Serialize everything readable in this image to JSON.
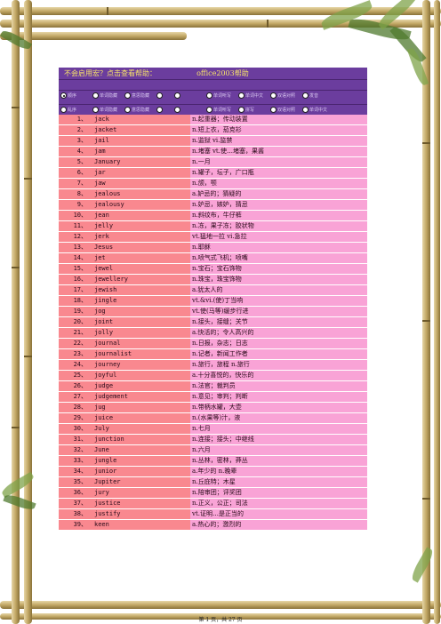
{
  "help": {
    "question": "不会启用宏？点击查看帮助：",
    "link": "office2003帮助"
  },
  "controls": {
    "row1": [
      {
        "label": "顺序",
        "selected": true
      },
      {
        "label": "单词隐藏",
        "selected": false
      },
      {
        "label": "意思隐藏",
        "selected": false
      },
      {
        "label": "",
        "selected": false
      },
      {
        "label": "",
        "selected": false
      },
      {
        "label": "单词听写",
        "selected": false
      },
      {
        "label": "单词中文",
        "selected": false
      },
      {
        "label": "双语对照",
        "selected": false
      },
      {
        "label": "发音",
        "selected": false
      }
    ],
    "row2": [
      {
        "label": "乱序",
        "selected": false
      },
      {
        "label": "单词隐藏",
        "selected": false
      },
      {
        "label": "意思隐藏",
        "selected": false
      },
      {
        "label": "",
        "selected": false
      },
      {
        "label": "",
        "selected": false
      },
      {
        "label": "单词听写",
        "selected": false
      },
      {
        "label": "拼写",
        "selected": false
      },
      {
        "label": "双语对照",
        "selected": false
      },
      {
        "label": "单词中文",
        "selected": false
      }
    ]
  },
  "words": [
    {
      "num": "1、",
      "word": "jack",
      "def": "n.起重器；传动装置"
    },
    {
      "num": "2、",
      "word": "jacket",
      "def": "n.短上衣，茄克衫"
    },
    {
      "num": "3、",
      "word": "jail",
      "def": "n.监狱 vi.监禁"
    },
    {
      "num": "4、",
      "word": "jam",
      "def": "n.堵塞 vt.使…堵塞，果酱"
    },
    {
      "num": "5、",
      "word": "January",
      "def": "n.一月"
    },
    {
      "num": "6、",
      "word": "jar",
      "def": "n.罐子，坛子，广口瓶"
    },
    {
      "num": "7、",
      "word": "jaw",
      "def": "n.颌，颚"
    },
    {
      "num": "8、",
      "word": "jealous",
      "def": "a.妒忌的；猜疑的"
    },
    {
      "num": "9、",
      "word": "jealousy",
      "def": "n.妒忌，嫉妒，猜忌"
    },
    {
      "num": "10、",
      "word": "jean",
      "def": "n.斜纹布，牛仔裤"
    },
    {
      "num": "11、",
      "word": "jelly",
      "def": "n.冻，果子冻；胶状物"
    },
    {
      "num": "12、",
      "word": "jerk",
      "def": "vt.猛地一拉 vi.急拉"
    },
    {
      "num": "13、",
      "word": "Jesus",
      "def": "n.耶稣"
    },
    {
      "num": "14、",
      "word": "jet",
      "def": "n.喷气式飞机；喷嘴"
    },
    {
      "num": "15、",
      "word": "jewel",
      "def": "n.宝石；宝石饰物"
    },
    {
      "num": "16、",
      "word": "jewellery",
      "def": "n.珠宝，珠宝饰物"
    },
    {
      "num": "17、",
      "word": "jewish",
      "def": "a.犹太人的"
    },
    {
      "num": "18、",
      "word": "jingle",
      "def": "vt.&vi.(使)丁当响"
    },
    {
      "num": "19、",
      "word": "jog",
      "def": "vt.使(马等)缓步行进"
    },
    {
      "num": "20、",
      "word": "joint",
      "def": "n.接头，接缝；关节"
    },
    {
      "num": "21、",
      "word": "jolly",
      "def": "a.快活的；令人高兴的"
    },
    {
      "num": "22、",
      "word": "journal",
      "def": "n.日报，杂志；日志"
    },
    {
      "num": "23、",
      "word": "journalist",
      "def": "n.记者，新闻工作者"
    },
    {
      "num": "24、",
      "word": "journey",
      "def": "n.旅行，旅程 n.旅行"
    },
    {
      "num": "25、",
      "word": "joyful",
      "def": "a.十分喜悦的，快乐的"
    },
    {
      "num": "26、",
      "word": "judge",
      "def": "n.法官；裁判员"
    },
    {
      "num": "27、",
      "word": "judgement",
      "def": "n.意见；审判；判断"
    },
    {
      "num": "28、",
      "word": "jug",
      "def": "n.带柄水罐，大壶"
    },
    {
      "num": "29、",
      "word": "juice",
      "def": "n.(水果等)汁，液"
    },
    {
      "num": "30、",
      "word": "July",
      "def": "n.七月"
    },
    {
      "num": "31、",
      "word": "junction",
      "def": "n.连接；接头；中继线"
    },
    {
      "num": "32、",
      "word": "June",
      "def": "n.六月"
    },
    {
      "num": "33、",
      "word": "jungle",
      "def": "n.丛林，密林，莽丛"
    },
    {
      "num": "34、",
      "word": "junior",
      "def": "a.年少的 n.晚辈"
    },
    {
      "num": "35、",
      "word": "Jupiter",
      "def": "n.丘庇特；木星"
    },
    {
      "num": "36、",
      "word": "jury",
      "def": "n.陪审团；评奖团"
    },
    {
      "num": "37、",
      "word": "justice",
      "def": "n.正义，公正；司法"
    },
    {
      "num": "38、",
      "word": "justify",
      "def": "vt.证明…是正当的"
    },
    {
      "num": "39、",
      "word": "keen",
      "def": "a.热心的；激烈的"
    }
  ],
  "footer": "第 1 页，共 27 页",
  "colors": {
    "header": "#6b3d9e",
    "header_text": "#f7e36a",
    "word_cell": "#f9888f",
    "def_cell": "#f9a3d6"
  },
  "decor_icons": [
    "bamboo-frame",
    "palm-leaf"
  ]
}
